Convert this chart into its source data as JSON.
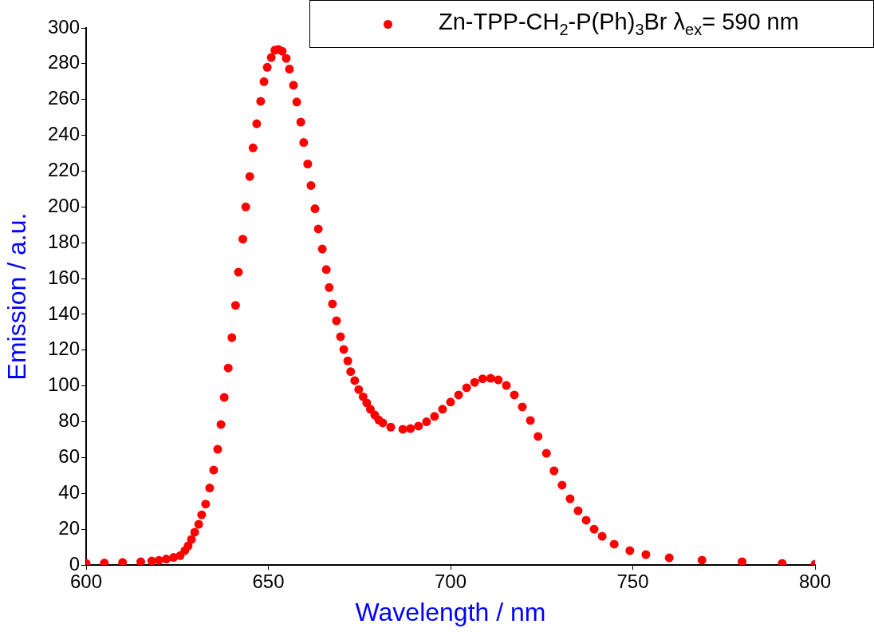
{
  "chart_data": {
    "type": "scatter",
    "xlabel": "Wavelength / nm",
    "ylabel": "Emission / a.u.",
    "xlim": [
      600,
      800
    ],
    "xticks": [
      600,
      650,
      700,
      750,
      800
    ],
    "ylim": [
      0,
      300
    ],
    "yticks": [
      0,
      20,
      40,
      60,
      80,
      100,
      120,
      140,
      160,
      180,
      200,
      220,
      240,
      260,
      280,
      300
    ],
    "grid": false,
    "legend": "top right",
    "marker": "circle",
    "series": [
      {
        "name": "Zn-TPP-CH$_{2}$-P(Ph)$_{3}$Br λ$_{ex}$= 590 nm",
        "color": "#ff0000",
        "x": [
          600,
          605,
          610,
          615,
          618,
          620,
          622,
          624,
          625.8,
          627.1,
          628,
          628.9,
          629.8,
          630.9,
          631.7,
          632.8,
          633.9,
          635,
          636.1,
          637,
          637.9,
          639,
          640,
          641,
          641.8,
          643,
          643.8,
          644.9,
          645.8,
          646.8,
          647.9,
          648.8,
          649.7,
          650.8,
          651.8,
          652.8,
          653.8,
          654.9,
          655.8,
          656.9,
          657.8,
          658.9,
          659.7,
          660.8,
          661.7,
          662.8,
          663.7,
          664.8,
          665.9,
          666.7,
          667.6,
          668.7,
          669.8,
          670.7,
          671.8,
          672.6,
          673.7,
          674.8,
          676,
          677,
          678,
          679.2,
          680.3,
          681.4,
          683.6,
          686.9,
          689,
          691.2,
          693.4,
          695.6,
          697.8,
          700,
          702.2,
          704.4,
          706.6,
          708.8,
          711,
          713.1,
          715.3,
          717.5,
          719.7,
          721.9,
          724,
          726.3,
          728.4,
          730.6,
          732.8,
          735,
          737.2,
          739.4,
          741.6,
          744.9,
          749.2,
          753.6,
          760,
          769,
          780,
          791,
          800
        ],
        "values": [
          0.9,
          1.1,
          1.4,
          1.8,
          2.2,
          2.6,
          3.3,
          4.2,
          5.2,
          8,
          10.7,
          14.3,
          18.3,
          22.7,
          28,
          34,
          43,
          53,
          64.6,
          78.5,
          93.6,
          110,
          127,
          145,
          163.6,
          182,
          200,
          217,
          233,
          246.5,
          259,
          270,
          278,
          283.5,
          287.6,
          288,
          287,
          283,
          277,
          268,
          258.6,
          247.4,
          236,
          224,
          212,
          199,
          187.7,
          176.5,
          165,
          155,
          145.8,
          136.4,
          127.5,
          120.4,
          114,
          108,
          103,
          98,
          94,
          90.5,
          87,
          83.8,
          81,
          79.4,
          77,
          75.8,
          76.2,
          77.6,
          80,
          83,
          87,
          91,
          95,
          99,
          102,
          104,
          104.3,
          103.4,
          100.3,
          95,
          88.3,
          80.7,
          71.8,
          62.4,
          52.6,
          44.6,
          37,
          30.3,
          25,
          20,
          16,
          11.6,
          8,
          5.8,
          4,
          2.7,
          1.8,
          0.9,
          0.4
        ]
      }
    ]
  }
}
